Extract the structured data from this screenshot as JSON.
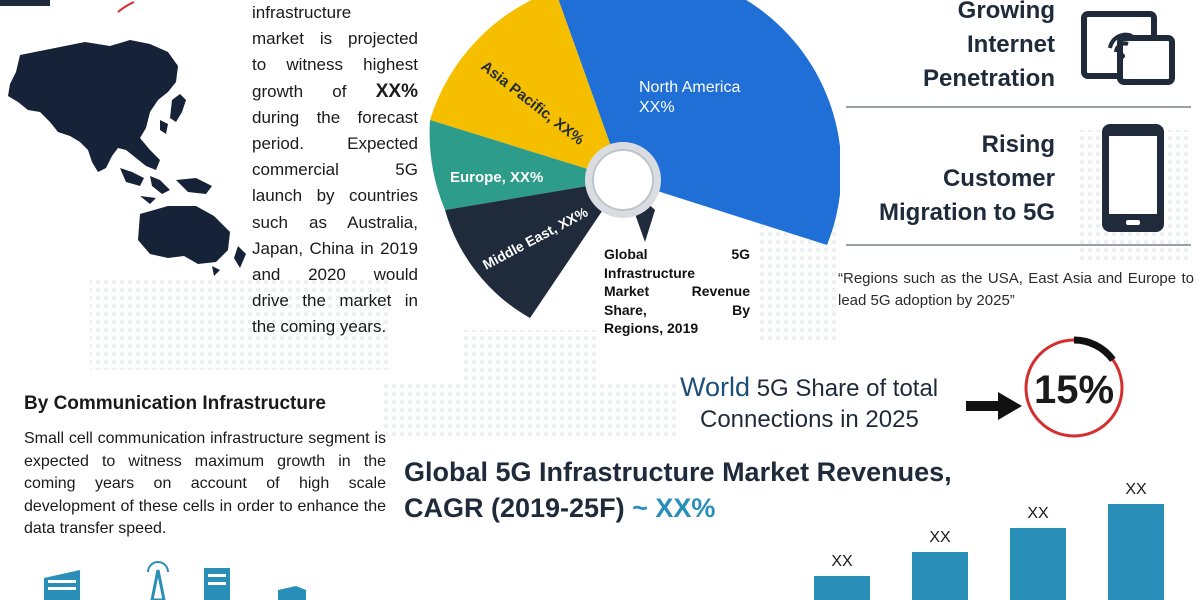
{
  "left_paragraph": {
    "line1": "infrastructure",
    "line2": "market is projected",
    "line3": "to witness highest",
    "line4_pre": "growth",
    "line4_of": "of",
    "line4_val": "XX%",
    "line5": "during the forecast",
    "line6": "period.   Expected",
    "line7": "commercial        5G",
    "line8": "launch by countries",
    "line9": "such as Australia,",
    "line10": "Japan, China in 2019",
    "line11": "and     2020   would",
    "line12": "drive the market in",
    "line13": "the coming years."
  },
  "pie": {
    "slices": [
      {
        "label": "North America",
        "value_label": "XX%",
        "color": "#1f6fd6"
      },
      {
        "label": "Asia Pacific, XX%",
        "color": "#f5bf00"
      },
      {
        "label": "Europe, XX%",
        "color": "#2e9c8a"
      },
      {
        "label": "Middle East, XX%",
        "color": "#1f2a3a"
      }
    ]
  },
  "pie_caption": {
    "l1a": "Global",
    "l1b": "5G",
    "l2": "Infrastructure",
    "l3a": "Market",
    "l3b": "Revenue",
    "l4a": "Share,",
    "l4b": "By",
    "l5": "Regions, 2019"
  },
  "drivers": {
    "d1": [
      "Growing",
      "Internet",
      "Penetration"
    ],
    "d2": [
      "Rising",
      "Customer",
      "Migration to 5G"
    ]
  },
  "quote": "“Regions such as the USA, East Asia and Europe to lead 5G adoption by 2025”",
  "world_share": {
    "world": "World",
    "line1_rest": " 5G Share of total",
    "line2": "Connections in 2025",
    "value": "15%",
    "fraction": 0.15
  },
  "comm": {
    "title": "By Communication Infrastructure",
    "text": "Small cell communication infrastructure segment is expected to witness maximum growth in the coming years on account of high scale development of these cells in order to enhance the data transfer speed."
  },
  "revenue": {
    "title_line1": "Global 5G Infrastructure Market Revenues,",
    "title_line2": "CAGR (2019-25F) ",
    "cagr_value": "~ XX%"
  },
  "chart_data": {
    "type": "bar",
    "categories": [
      "",
      "",
      "",
      ""
    ],
    "values": [
      1,
      2,
      3,
      4
    ],
    "data_labels": [
      "XX",
      "XX",
      "XX",
      "XX"
    ],
    "bar_color": "#2a8fb8"
  },
  "colors": {
    "navy": "#1f2a3a",
    "blue": "#1f6fd6",
    "yellow": "#f5bf00",
    "teal": "#2e9c8a",
    "bar": "#2a8fb8",
    "red": "#d32f2f"
  }
}
